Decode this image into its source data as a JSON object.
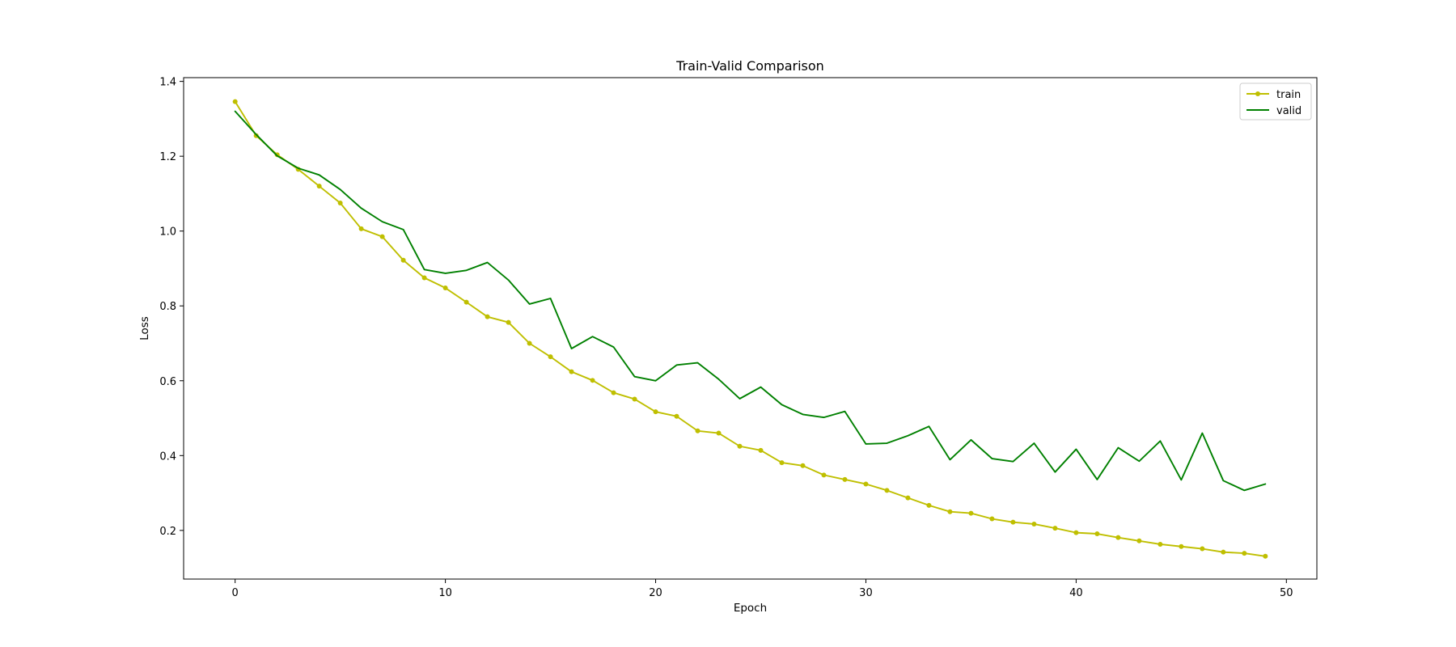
{
  "chart_data": {
    "type": "line",
    "title": "Train-Valid Comparison",
    "xlabel": "Epoch",
    "ylabel": "Loss",
    "xlim": [
      -2.45,
      51.45
    ],
    "ylim": [
      0.07,
      1.41
    ],
    "xticks": [
      0,
      10,
      20,
      30,
      40,
      50
    ],
    "yticks": [
      0.2,
      0.4,
      0.6,
      0.8,
      1.0,
      1.2,
      1.4
    ],
    "xtick_labels": [
      "0",
      "10",
      "20",
      "30",
      "40",
      "50"
    ],
    "ytick_labels": [
      "0.2",
      "0.4",
      "0.6",
      "0.8",
      "1.0",
      "1.2",
      "1.4"
    ],
    "grid": false,
    "legend_position": "top-right",
    "x": [
      0,
      1,
      2,
      3,
      4,
      5,
      6,
      7,
      8,
      9,
      10,
      11,
      12,
      13,
      14,
      15,
      16,
      17,
      18,
      19,
      20,
      21,
      22,
      23,
      24,
      25,
      26,
      27,
      28,
      29,
      30,
      31,
      32,
      33,
      34,
      35,
      36,
      37,
      38,
      39,
      40,
      41,
      42,
      43,
      44,
      45,
      46,
      47,
      48,
      49
    ],
    "series": [
      {
        "name": "train",
        "color": "#bfbf00",
        "marker": "point",
        "values": [
          1.346,
          1.255,
          1.204,
          1.165,
          1.12,
          1.075,
          1.006,
          0.985,
          0.922,
          0.875,
          0.848,
          0.81,
          0.771,
          0.756,
          0.7,
          0.664,
          0.624,
          0.601,
          0.568,
          0.551,
          0.517,
          0.505,
          0.466,
          0.46,
          0.425,
          0.414,
          0.381,
          0.373,
          0.348,
          0.336,
          0.324,
          0.307,
          0.287,
          0.267,
          0.25,
          0.246,
          0.231,
          0.222,
          0.217,
          0.206,
          0.194,
          0.191,
          0.181,
          0.172,
          0.163,
          0.157,
          0.151,
          0.142,
          0.139,
          0.131
        ]
      },
      {
        "name": "valid",
        "color": "#008000",
        "marker": "none",
        "values": [
          1.32,
          1.258,
          1.201,
          1.168,
          1.15,
          1.111,
          1.061,
          1.025,
          1.004,
          0.897,
          0.887,
          0.895,
          0.916,
          0.869,
          0.805,
          0.82,
          0.686,
          0.718,
          0.69,
          0.611,
          0.6,
          0.642,
          0.648,
          0.604,
          0.552,
          0.583,
          0.536,
          0.51,
          0.502,
          0.518,
          0.431,
          0.433,
          0.453,
          0.478,
          0.389,
          0.442,
          0.392,
          0.384,
          0.433,
          0.356,
          0.417,
          0.336,
          0.421,
          0.385,
          0.439,
          0.335,
          0.46,
          0.333,
          0.307,
          0.324
        ]
      }
    ]
  }
}
